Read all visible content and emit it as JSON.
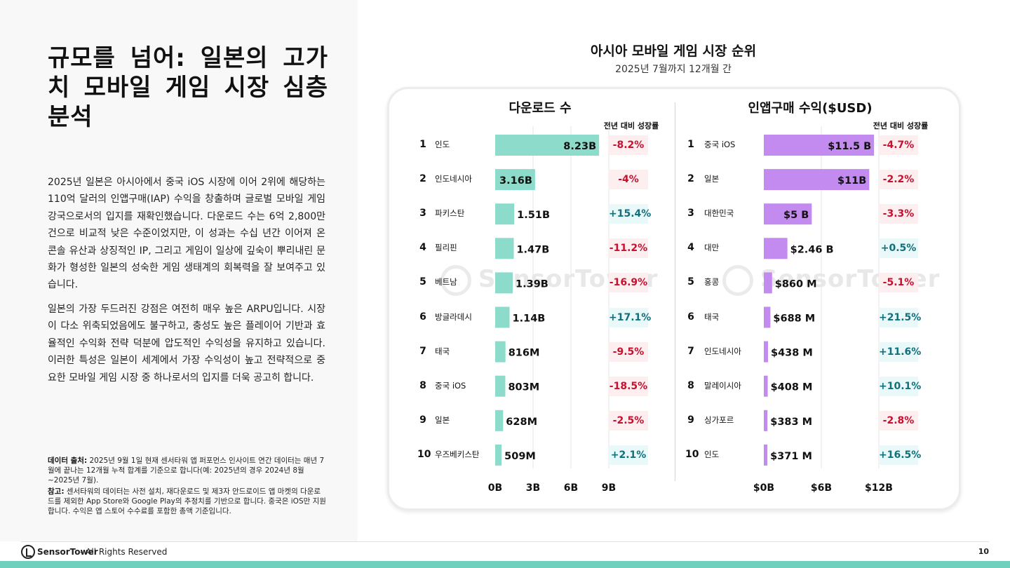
{
  "page": {
    "title": "규모를 넘어: 일본의 고가치 모바일 게임 시장 심층 분석",
    "paragraphs": [
      "2025년 일본은 아시아에서 중국 iOS 시장에 이어 2위에 해당하는 110억 달러의 인앱구매(IAP) 수익을 창출하며 글로벌 모바일 게임 강국으로서의 입지를 재확인했습니다. 다운로드 수는 6억 2,800만 건으로 비교적 낮은 수준이었지만, 이 성과는 수십 년간 이어져 온 콘솔 유산과 상징적인 IP, 그리고 게임이 일상에 깊숙이 뿌리내린 문화가 형성한 일본의 성숙한 게임 생태계의 회복력을 잘 보여주고 있습니다.",
      "일본의 가장 두드러진 강점은 여전히 매우 높은 ARPU입니다. 시장이 다소 위축되었음에도 불구하고, 충성도 높은 플레이어 기반과 효율적인 수익화 전략 덕분에 압도적인 수익성을 유지하고 있습니다. 이러한 특성은 일본이 세계에서 가장 수익성이 높고 전략적으로 중요한 모바일 게임 시장 중 하나로서의 입지를 더욱 공고히 합니다."
    ],
    "notes": [
      {
        "label": "데이터 출처:",
        "text": " 2025년 9월 1일 현재 센서타워 앱 퍼포먼스 인사이트 연간 데이터는 매년 7월에 끝나는 12개월 누적 합계를 기준으로 합니다(예: 2025년의 경우 2024년 8월~2025년 7월)."
      },
      {
        "label": "참고:",
        "text": " 센서타워의 데이터는 사전 설치, 재다운로드 및 제3자 안드로이드 앱 마켓의 다운로드를 제외한 App Store와 Google Play의 추정치를 기반으로 합니다. 중국은 iOS만 지원합니다. 수익은 앱 스토어 수수료를 포함한 총액 기준입니다."
      }
    ],
    "footer": {
      "brand": "SensorTower",
      "rights": "- All Rights Reserved",
      "page_number": "10"
    },
    "watermark": "SensorTower"
  },
  "chart_data": [
    {
      "type": "bar",
      "orientation": "horizontal",
      "title": "아시아 모바일 게임 시장 순위",
      "subtitle": "2025년 7월까지 12개월 간",
      "panel_title": "다운로드 수",
      "yoy_header": "전년 대비 성장률",
      "color": "#8ddccb",
      "ranks": [
        "1",
        "2",
        "3",
        "4",
        "5",
        "6",
        "7",
        "8",
        "9",
        "10"
      ],
      "categories": [
        "인도",
        "인도네시아",
        "파키스탄",
        "필리핀",
        "베트남",
        "방글라데시",
        "태국",
        "중국 iOS",
        "일본",
        "우즈베키스탄"
      ],
      "values": [
        8.23,
        3.16,
        1.51,
        1.47,
        1.39,
        1.14,
        0.816,
        0.803,
        0.628,
        0.509
      ],
      "value_labels": [
        "8.23B",
        "3.16B",
        "1.51B",
        "1.47B",
        "1.39B",
        "1.14B",
        "816M",
        "803M",
        "628M",
        "509M"
      ],
      "yoy": [
        "-8.2%",
        "-4%",
        "+15.4%",
        "-11.2%",
        "-16.9%",
        "+17.1%",
        "-9.5%",
        "-18.5%",
        "-2.5%",
        "+2.1%"
      ],
      "xlim": [
        0,
        9
      ],
      "xticks": [
        "0B",
        "3B",
        "6B",
        "9B"
      ]
    },
    {
      "type": "bar",
      "orientation": "horizontal",
      "panel_title": "인앱구매 수익($USD)",
      "yoy_header": "전년 대비 성장률",
      "color": "#c38af0",
      "ranks": [
        "1",
        "2",
        "3",
        "4",
        "5",
        "6",
        "7",
        "8",
        "9",
        "10"
      ],
      "categories": [
        "중국 iOS",
        "일본",
        "대한민국",
        "대만",
        "홍콩",
        "태국",
        "인도네시아",
        "말레이시아",
        "싱가포르",
        "인도"
      ],
      "values": [
        11.5,
        11,
        5,
        2.46,
        0.86,
        0.688,
        0.438,
        0.408,
        0.383,
        0.371
      ],
      "value_labels": [
        "$11.5 B",
        "$11B",
        "$5 B",
        "$2.46 B",
        "$860 M",
        "$688 M",
        "$438 M",
        "$408 M",
        "$383 M",
        "$371 M"
      ],
      "yoy": [
        "-4.7%",
        "-2.2%",
        "-3.3%",
        "+0.5%",
        "-5.1%",
        "+21.5%",
        "+11.6%",
        "+10.1%",
        "-2.8%",
        "+16.5%"
      ],
      "xlim": [
        0,
        12
      ],
      "xticks": [
        "$0B",
        "$6B",
        "$12B"
      ]
    }
  ]
}
